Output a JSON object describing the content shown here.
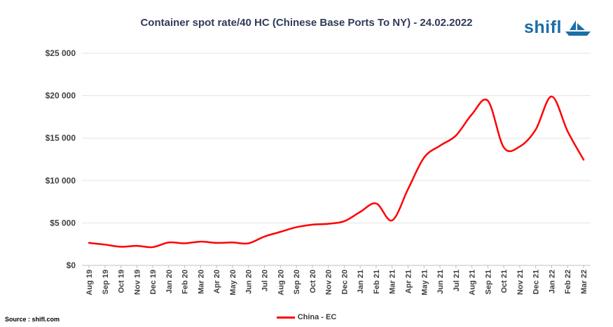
{
  "chart_data": {
    "type": "line",
    "title": "Container spot rate/40 HC (Chinese Base Ports To NY) - 24.02.2022",
    "xlabel": "",
    "ylabel": "",
    "ylim": [
      0,
      25000
    ],
    "yticks": [
      {
        "value": 0,
        "label": "$0"
      },
      {
        "value": 5000,
        "label": "$5 000"
      },
      {
        "value": 10000,
        "label": "$10 000"
      },
      {
        "value": 15000,
        "label": "$15 000"
      },
      {
        "value": 20000,
        "label": "$20 000"
      },
      {
        "value": 25000,
        "label": "$25 000"
      }
    ],
    "categories": [
      "Aug 19",
      "Sep 19",
      "Oct 19",
      "Nov 19",
      "Dec 19",
      "Jan 20",
      "Feb 20",
      "Mar 20",
      "Apr 20",
      "May 20",
      "Jun 20",
      "Jul 20",
      "Aug 20",
      "Sep 20",
      "Oct 20",
      "Nov 20",
      "Dec 20",
      "Jan 21",
      "Feb 21",
      "Mar 21",
      "Apr 21",
      "May 21",
      "Jun 21",
      "Jul 21",
      "Aug 21",
      "Sep 21",
      "Oct 21",
      "Nov 21",
      "Dec 21",
      "Jan 22",
      "Feb 22",
      "Mar 22"
    ],
    "series": [
      {
        "name": "China - EC",
        "color": "#ff0000",
        "values": [
          2650,
          2450,
          2200,
          2300,
          2150,
          2700,
          2600,
          2800,
          2650,
          2700,
          2600,
          3400,
          3950,
          4500,
          4800,
          4900,
          5200,
          6300,
          7300,
          5300,
          9000,
          12700,
          14100,
          15300,
          17800,
          19400,
          13900,
          14000,
          16000,
          19900,
          15800,
          12450
        ]
      }
    ],
    "grid": "horizontal",
    "legend": "bottom-center"
  },
  "branding": {
    "logo_text": "shifl",
    "logo_icon": "sailboat-icon"
  },
  "source_text": "Source : shifl.com"
}
